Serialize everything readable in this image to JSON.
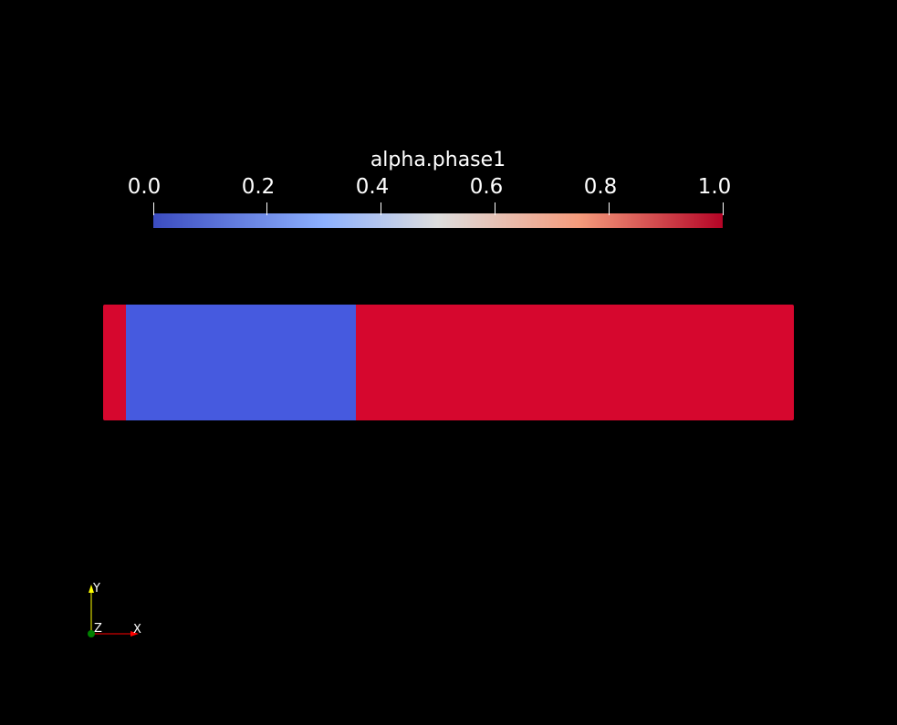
{
  "scalar_bar": {
    "title": "alpha.phase1",
    "range": [
      0.0,
      1.0
    ],
    "tick_labels": [
      "0.0",
      "0.2",
      "0.4",
      "0.6",
      "0.8",
      "1.0"
    ],
    "colormap": "coolwarm",
    "colors": {
      "low": "#3b4cc0",
      "mid": "#dddddd",
      "high": "#b40426"
    }
  },
  "field_regions": [
    {
      "name": "left-strip",
      "value": 1.0,
      "color": "#d6072e"
    },
    {
      "name": "phase2-region",
      "value": 0.0,
      "color": "#465adf"
    },
    {
      "name": "phase1-region",
      "value": 1.0,
      "color": "#d6072e"
    }
  ],
  "orientation_axes": {
    "x_label": "X",
    "y_label": "Y",
    "z_label": "Z",
    "x_color": "#ff0000",
    "y_color": "#ffff00",
    "z_color": "#008000"
  }
}
